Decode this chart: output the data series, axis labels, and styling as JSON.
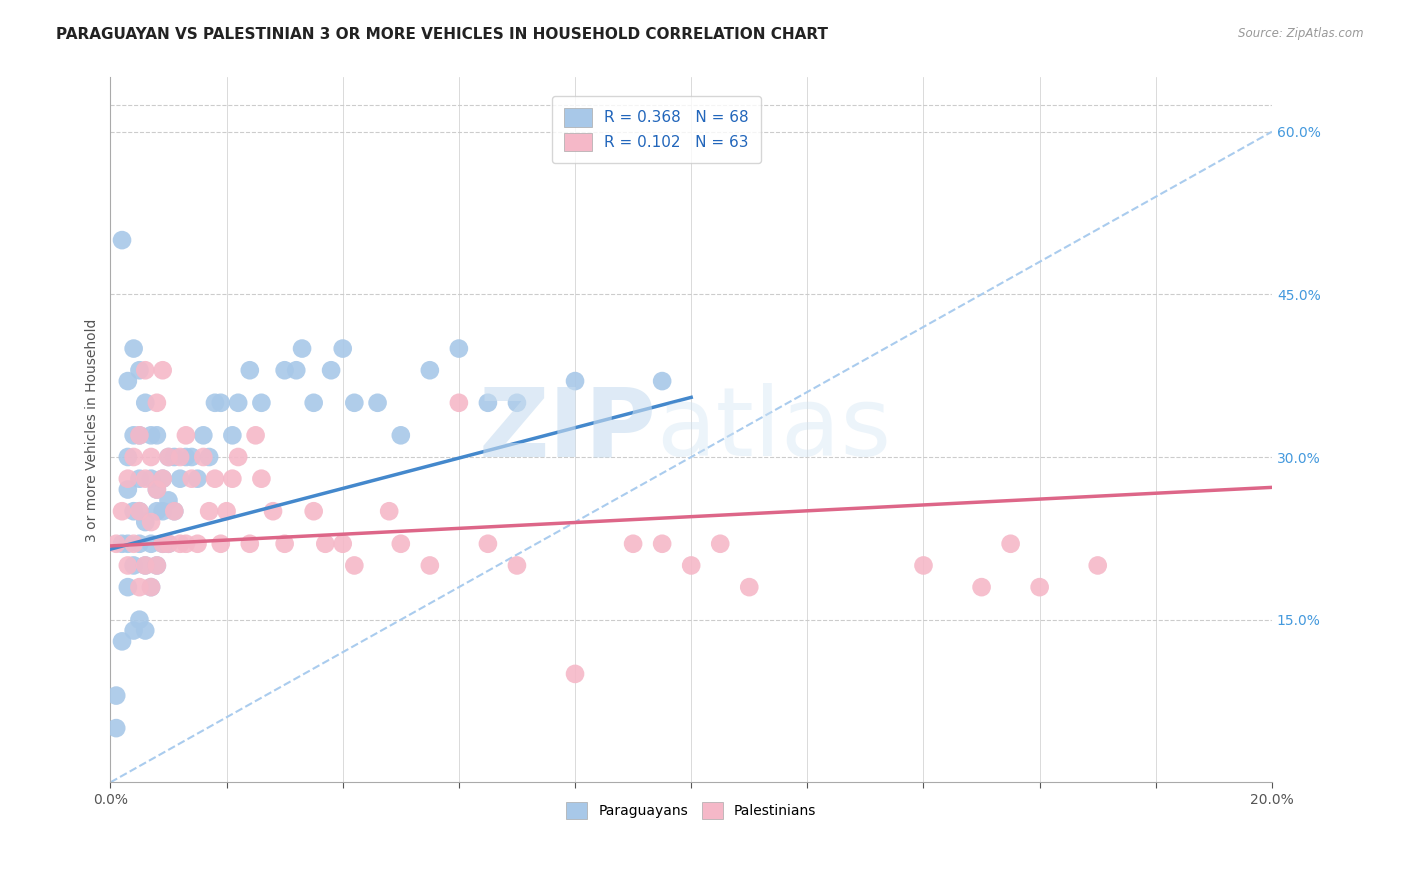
{
  "title": "PARAGUAYAN VS PALESTINIAN 3 OR MORE VEHICLES IN HOUSEHOLD CORRELATION CHART",
  "source": "Source: ZipAtlas.com",
  "ylabel": "3 or more Vehicles in Household",
  "xlim": [
    0.0,
    0.2
  ],
  "ylim": [
    0.0,
    0.65
  ],
  "xticks": [
    0.0,
    0.02,
    0.04,
    0.06,
    0.08,
    0.1,
    0.12,
    0.14,
    0.16,
    0.18,
    0.2
  ],
  "ytick_right_vals": [
    0.15,
    0.3,
    0.45,
    0.6
  ],
  "ytick_right_labels": [
    "15.0%",
    "30.0%",
    "45.0%",
    "60.0%"
  ],
  "paraguayan_color": "#a8c8e8",
  "palestinian_color": "#f5b8c8",
  "paraguayan_line_color": "#4488cc",
  "palestinian_line_color": "#dd6688",
  "ref_line_color": "#aaccee",
  "watermark_zip": "ZIP",
  "watermark_atlas": "atlas",
  "paraguayan_x": [
    0.001,
    0.001,
    0.002,
    0.002,
    0.002,
    0.003,
    0.003,
    0.003,
    0.003,
    0.003,
    0.004,
    0.004,
    0.004,
    0.004,
    0.004,
    0.005,
    0.005,
    0.005,
    0.005,
    0.005,
    0.005,
    0.006,
    0.006,
    0.006,
    0.006,
    0.007,
    0.007,
    0.007,
    0.007,
    0.008,
    0.008,
    0.008,
    0.008,
    0.009,
    0.009,
    0.009,
    0.01,
    0.01,
    0.01,
    0.011,
    0.011,
    0.012,
    0.013,
    0.014,
    0.015,
    0.016,
    0.017,
    0.018,
    0.019,
    0.021,
    0.022,
    0.024,
    0.026,
    0.03,
    0.032,
    0.033,
    0.035,
    0.038,
    0.04,
    0.042,
    0.046,
    0.05,
    0.055,
    0.06,
    0.065,
    0.07,
    0.08,
    0.095
  ],
  "paraguayan_y": [
    0.05,
    0.08,
    0.22,
    0.13,
    0.5,
    0.18,
    0.22,
    0.27,
    0.3,
    0.37,
    0.14,
    0.2,
    0.25,
    0.32,
    0.4,
    0.15,
    0.22,
    0.25,
    0.28,
    0.32,
    0.38,
    0.14,
    0.2,
    0.24,
    0.35,
    0.18,
    0.22,
    0.28,
    0.32,
    0.2,
    0.25,
    0.27,
    0.32,
    0.22,
    0.25,
    0.28,
    0.22,
    0.26,
    0.3,
    0.25,
    0.3,
    0.28,
    0.3,
    0.3,
    0.28,
    0.32,
    0.3,
    0.35,
    0.35,
    0.32,
    0.35,
    0.38,
    0.35,
    0.38,
    0.38,
    0.4,
    0.35,
    0.38,
    0.4,
    0.35,
    0.35,
    0.32,
    0.38,
    0.4,
    0.35,
    0.35,
    0.37,
    0.37
  ],
  "palestinian_x": [
    0.001,
    0.002,
    0.003,
    0.003,
    0.004,
    0.004,
    0.005,
    0.005,
    0.005,
    0.006,
    0.006,
    0.006,
    0.007,
    0.007,
    0.007,
    0.008,
    0.008,
    0.008,
    0.009,
    0.009,
    0.009,
    0.01,
    0.01,
    0.011,
    0.012,
    0.012,
    0.013,
    0.013,
    0.014,
    0.015,
    0.016,
    0.017,
    0.018,
    0.019,
    0.02,
    0.021,
    0.022,
    0.024,
    0.025,
    0.026,
    0.028,
    0.03,
    0.035,
    0.037,
    0.04,
    0.042,
    0.048,
    0.05,
    0.055,
    0.06,
    0.065,
    0.07,
    0.08,
    0.09,
    0.095,
    0.1,
    0.105,
    0.11,
    0.14,
    0.15,
    0.155,
    0.16,
    0.17
  ],
  "palestinian_y": [
    0.22,
    0.25,
    0.2,
    0.28,
    0.22,
    0.3,
    0.18,
    0.25,
    0.32,
    0.2,
    0.28,
    0.38,
    0.18,
    0.24,
    0.3,
    0.2,
    0.27,
    0.35,
    0.22,
    0.28,
    0.38,
    0.22,
    0.3,
    0.25,
    0.22,
    0.3,
    0.22,
    0.32,
    0.28,
    0.22,
    0.3,
    0.25,
    0.28,
    0.22,
    0.25,
    0.28,
    0.3,
    0.22,
    0.32,
    0.28,
    0.25,
    0.22,
    0.25,
    0.22,
    0.22,
    0.2,
    0.25,
    0.22,
    0.2,
    0.35,
    0.22,
    0.2,
    0.1,
    0.22,
    0.22,
    0.2,
    0.22,
    0.18,
    0.2,
    0.18,
    0.22,
    0.18,
    0.2
  ],
  "blue_line_x": [
    0.0,
    0.1
  ],
  "blue_line_y": [
    0.215,
    0.355
  ],
  "pink_line_x": [
    0.0,
    0.2
  ],
  "pink_line_y": [
    0.218,
    0.272
  ],
  "ref_line_x": [
    0.0,
    0.2
  ],
  "ref_line_y": [
    0.0,
    0.6
  ],
  "background_color": "#ffffff",
  "grid_color": "#cccccc",
  "title_fontsize": 11,
  "label_fontsize": 10,
  "tick_fontsize": 10,
  "legend_fontsize": 11
}
